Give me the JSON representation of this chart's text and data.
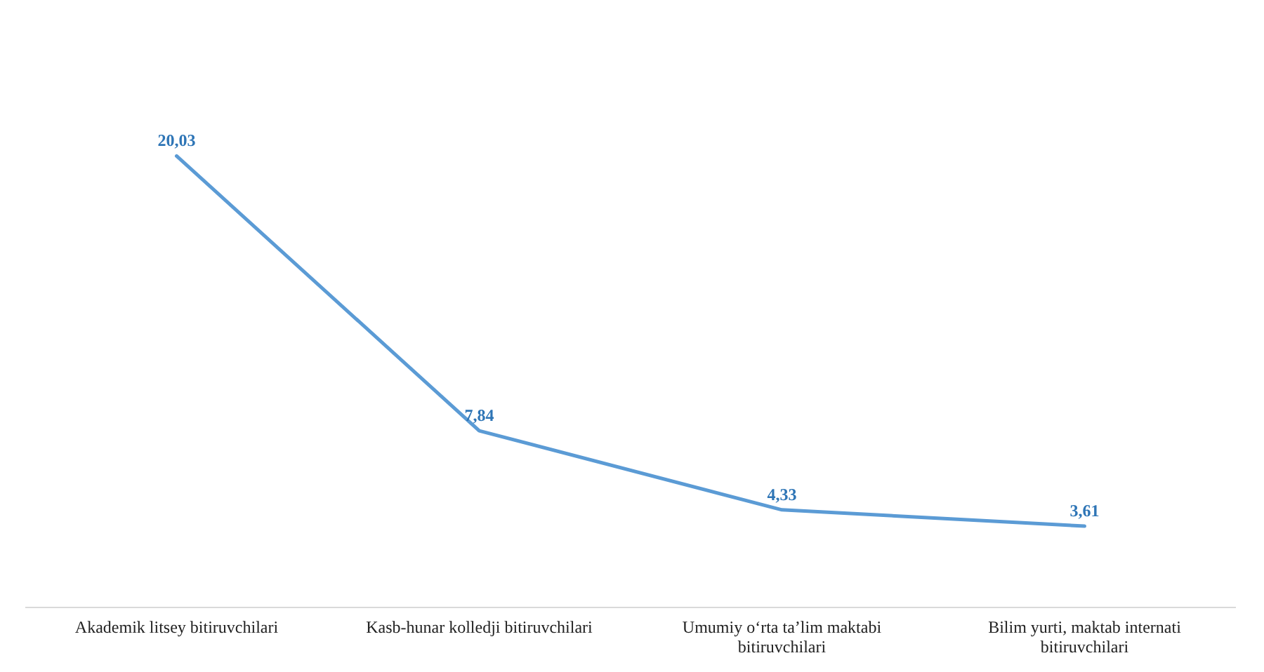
{
  "chart_data": {
    "type": "line",
    "categories": [
      "Akademik litsey bitiruvchilari",
      "Kasb-hunar kolledji bitiruvchilari",
      "Umumiy o‘rta ta’lim maktabi bitiruvchilari",
      "Bilim yurti, maktab internati bitiruvchilari"
    ],
    "series": [
      {
        "color": "#5b9bd5",
        "values": [
          20.03,
          7.84,
          4.33,
          3.61
        ],
        "value_labels": [
          "20,03",
          "7,84",
          "4,33",
          "3,61"
        ]
      }
    ],
    "marker": "none",
    "line_style": "solid"
  }
}
